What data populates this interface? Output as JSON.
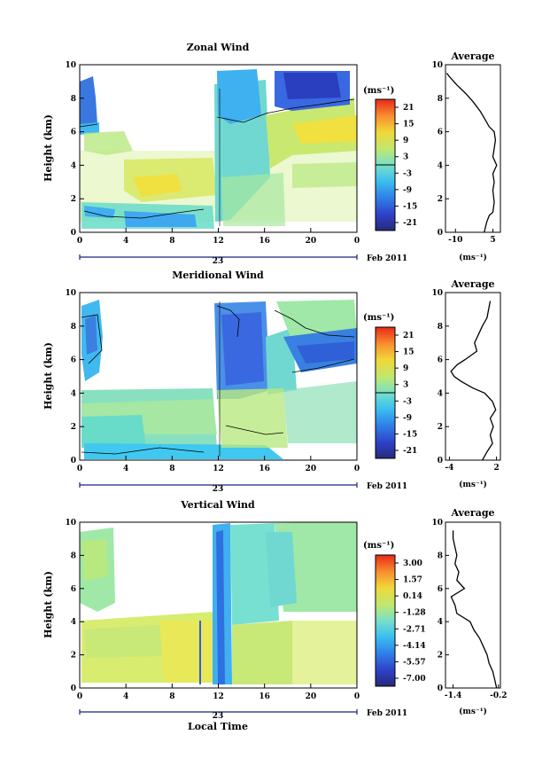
{
  "chart_data": [
    {
      "type": "heatmap",
      "title": "Zonal Wind",
      "ylabel": "Height (km)",
      "xticks": [
        "0",
        "4",
        "8",
        "12",
        "16",
        "20",
        "0"
      ],
      "yticks": [
        "0",
        "2",
        "4",
        "6",
        "8",
        "10"
      ],
      "xlim": [
        0,
        24
      ],
      "ylim": [
        0,
        10
      ],
      "date_label": "23",
      "month_label": "Feb 2011",
      "colorbar": {
        "unit": "(ms⁻¹)",
        "ticks": [
          "21",
          "15",
          "9",
          "3",
          "-3",
          "-9",
          "-15",
          "-21"
        ],
        "range": [
          -24,
          24
        ]
      },
      "average": {
        "title": "Average",
        "unit": "(ms⁻¹)",
        "xticks": [
          "-10",
          "5"
        ],
        "xtick_values": [
          -10,
          5
        ],
        "xlim": [
          -14,
          8
        ],
        "profile": [
          {
            "h": 0.0,
            "v": 1.5
          },
          {
            "h": 0.6,
            "v": 2.5
          },
          {
            "h": 1.0,
            "v": 3.5
          },
          {
            "h": 1.2,
            "v": 5.0
          },
          {
            "h": 1.8,
            "v": 5.5
          },
          {
            "h": 2.5,
            "v": 5.0
          },
          {
            "h": 3.0,
            "v": 5.5
          },
          {
            "h": 3.5,
            "v": 5.0
          },
          {
            "h": 4.0,
            "v": 6.5
          },
          {
            "h": 4.5,
            "v": 5.0
          },
          {
            "h": 5.0,
            "v": 5.5
          },
          {
            "h": 5.5,
            "v": 6.0
          },
          {
            "h": 6.0,
            "v": 5.5
          },
          {
            "h": 6.3,
            "v": 3.5
          },
          {
            "h": 6.7,
            "v": 2.0
          },
          {
            "h": 7.2,
            "v": 0.0
          },
          {
            "h": 7.8,
            "v": -3.0
          },
          {
            "h": 8.3,
            "v": -6.0
          },
          {
            "h": 8.8,
            "v": -9.5
          },
          {
            "h": 9.3,
            "v": -12.5
          },
          {
            "h": 9.5,
            "v": -13.5
          }
        ]
      }
    },
    {
      "type": "heatmap",
      "title": "Meridional Wind",
      "ylabel": "Height (km)",
      "xticks": [
        "0",
        "4",
        "8",
        "12",
        "16",
        "20",
        "0"
      ],
      "yticks": [
        "0",
        "2",
        "4",
        "6",
        "8",
        "10"
      ],
      "xlim": [
        0,
        24
      ],
      "ylim": [
        0,
        10
      ],
      "date_label": "23",
      "month_label": "Feb 2011",
      "colorbar": {
        "unit": "(ms⁻¹)",
        "ticks": [
          "21",
          "15",
          "9",
          "3",
          "-3",
          "-9",
          "-15",
          "-21"
        ],
        "range": [
          -24,
          24
        ]
      },
      "average": {
        "title": "Average",
        "unit": "(ms⁻¹)",
        "xticks": [
          "-4",
          "2"
        ],
        "xtick_values": [
          -4,
          2
        ],
        "xlim": [
          -4.5,
          2.5
        ],
        "profile": [
          {
            "h": 0.0,
            "v": 0.2
          },
          {
            "h": 0.5,
            "v": 0.8
          },
          {
            "h": 1.0,
            "v": 1.5
          },
          {
            "h": 1.5,
            "v": 1.2
          },
          {
            "h": 2.0,
            "v": 1.6
          },
          {
            "h": 2.5,
            "v": 1.2
          },
          {
            "h": 3.0,
            "v": 1.9
          },
          {
            "h": 3.5,
            "v": 1.5
          },
          {
            "h": 4.0,
            "v": 0.5
          },
          {
            "h": 4.3,
            "v": -1.0
          },
          {
            "h": 4.7,
            "v": -2.5
          },
          {
            "h": 5.0,
            "v": -3.4
          },
          {
            "h": 5.3,
            "v": -3.8
          },
          {
            "h": 5.7,
            "v": -3.0
          },
          {
            "h": 6.0,
            "v": -2.0
          },
          {
            "h": 6.5,
            "v": -0.5
          },
          {
            "h": 7.0,
            "v": -0.8
          },
          {
            "h": 7.5,
            "v": -0.3
          },
          {
            "h": 8.0,
            "v": 0.2
          },
          {
            "h": 8.5,
            "v": 0.8
          },
          {
            "h": 9.0,
            "v": 1.0
          },
          {
            "h": 9.5,
            "v": 1.2
          }
        ]
      }
    },
    {
      "type": "heatmap",
      "title": "Vertical Wind",
      "ylabel": "Height (km)",
      "xlabel": "Local Time",
      "xticks": [
        "0",
        "4",
        "8",
        "12",
        "16",
        "20",
        "0"
      ],
      "yticks": [
        "0",
        "2",
        "4",
        "6",
        "8",
        "10"
      ],
      "xlim": [
        0,
        24
      ],
      "ylim": [
        0,
        10
      ],
      "date_label": "23",
      "month_label": "Feb 2011",
      "colorbar": {
        "unit": "(ms⁻¹)",
        "ticks": [
          "3.00",
          "1.57",
          "0.14",
          "-1.28",
          "-2.71",
          "-4.14",
          "-5.57",
          "-7.00"
        ],
        "range": [
          -8.0,
          4.0
        ]
      },
      "average": {
        "title": "Average",
        "unit": "(ms⁻¹)",
        "xticks": [
          "-1.4",
          "-0.2"
        ],
        "xtick_values": [
          -1.4,
          -0.2
        ],
        "xlim": [
          -1.6,
          -0.15
        ],
        "profile": [
          {
            "h": 0.0,
            "v": -0.25
          },
          {
            "h": 0.5,
            "v": -0.3
          },
          {
            "h": 1.0,
            "v": -0.35
          },
          {
            "h": 1.5,
            "v": -0.45
          },
          {
            "h": 2.0,
            "v": -0.5
          },
          {
            "h": 2.5,
            "v": -0.6
          },
          {
            "h": 3.0,
            "v": -0.7
          },
          {
            "h": 3.5,
            "v": -0.85
          },
          {
            "h": 4.0,
            "v": -0.95
          },
          {
            "h": 4.5,
            "v": -1.3
          },
          {
            "h": 5.0,
            "v": -1.35
          },
          {
            "h": 5.5,
            "v": -1.45
          },
          {
            "h": 6.0,
            "v": -1.1
          },
          {
            "h": 6.5,
            "v": -1.3
          },
          {
            "h": 7.0,
            "v": -1.25
          },
          {
            "h": 7.5,
            "v": -1.35
          },
          {
            "h": 8.0,
            "v": -1.3
          },
          {
            "h": 8.5,
            "v": -1.35
          },
          {
            "h": 9.0,
            "v": -1.4
          },
          {
            "h": 9.5,
            "v": -1.4
          }
        ]
      }
    }
  ],
  "colors": {
    "scale": [
      "#2a2fb5",
      "#2f6fe0",
      "#34a8f0",
      "#3fd0e0",
      "#6ee0c0",
      "#a8e890",
      "#e0e860",
      "#f8c030",
      "#f88030",
      "#e83020"
    ],
    "axis": "#000000",
    "contour": "#000000"
  }
}
